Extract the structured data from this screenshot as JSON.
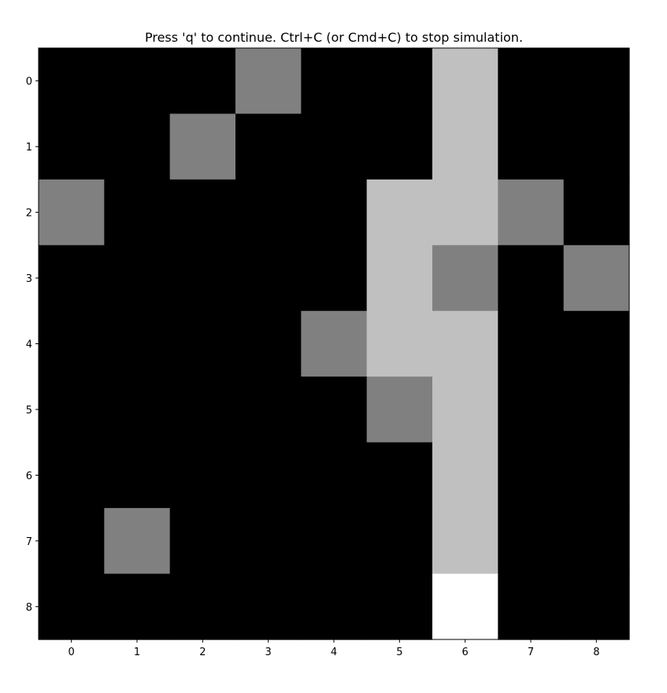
{
  "title": "Press 'q' to continue. Ctrl+C (or Cmd+C) to stop simulation.",
  "chart_data": {
    "type": "heatmap",
    "title": "Press 'q' to continue. Ctrl+C (or Cmd+C) to stop simulation.",
    "xlabel": "",
    "ylabel": "",
    "x_ticks": [
      "0",
      "1",
      "2",
      "3",
      "4",
      "5",
      "6",
      "7",
      "8"
    ],
    "y_ticks": [
      "0",
      "1",
      "2",
      "3",
      "4",
      "5",
      "6",
      "7",
      "8"
    ],
    "colormap": "gray",
    "vmin": 0,
    "vmax": 3,
    "grid": [
      [
        0,
        0,
        0,
        1,
        0,
        0,
        2,
        0,
        0
      ],
      [
        0,
        0,
        1,
        0,
        0,
        0,
        2,
        0,
        0
      ],
      [
        1,
        0,
        0,
        0,
        0,
        2,
        2,
        1,
        0
      ],
      [
        0,
        0,
        0,
        0,
        0,
        2,
        1,
        0,
        1
      ],
      [
        0,
        0,
        0,
        0,
        1,
        2,
        2,
        0,
        0
      ],
      [
        0,
        0,
        0,
        0,
        0,
        1,
        2,
        0,
        0
      ],
      [
        0,
        0,
        0,
        0,
        0,
        0,
        2,
        0,
        0
      ],
      [
        0,
        1,
        0,
        0,
        0,
        0,
        2,
        0,
        0
      ],
      [
        0,
        0,
        0,
        0,
        0,
        0,
        3,
        0,
        0
      ]
    ],
    "value_colors": {
      "0": "#000000",
      "1": "#808080",
      "2": "#c0c0c0",
      "3": "#ffffff"
    }
  }
}
